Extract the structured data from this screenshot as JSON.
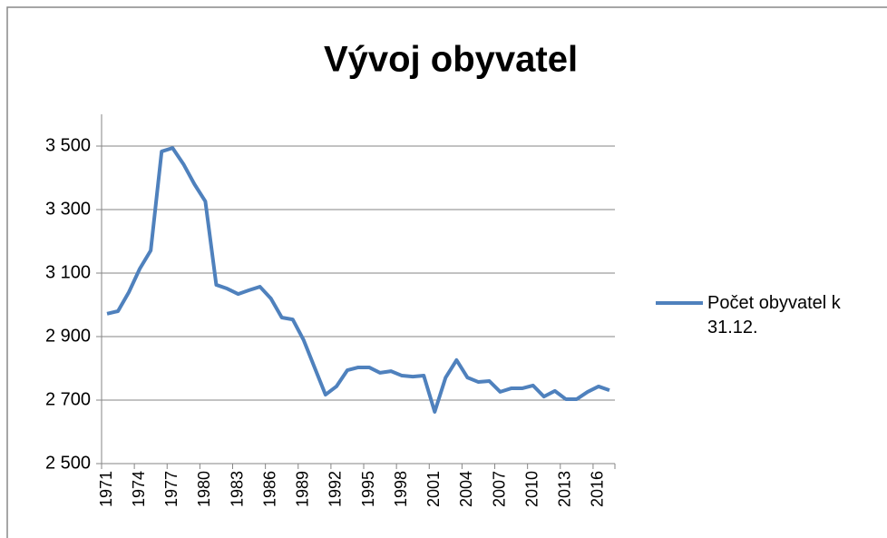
{
  "chart_data": {
    "type": "line",
    "title": "Vývoj obyvatel",
    "categories": [
      "1971",
      null,
      null,
      "1974",
      null,
      null,
      "1977",
      null,
      null,
      "1980",
      null,
      null,
      "1983",
      null,
      null,
      "1986",
      null,
      null,
      "1989",
      null,
      null,
      "1992",
      null,
      null,
      "1995",
      null,
      null,
      "1998",
      null,
      null,
      "2001",
      null,
      null,
      "2004",
      null,
      null,
      "2007",
      null,
      null,
      "2010",
      null,
      null,
      "2013",
      null,
      null,
      "2016",
      null
    ],
    "series": [
      {
        "name": "Počet obyvatel k 31.12.",
        "color": "#4f81bd",
        "values": [
          2972,
          2980,
          3040,
          3114,
          3171,
          3483,
          3494,
          3443,
          3380,
          3326,
          3063,
          3051,
          3034,
          3046,
          3057,
          3020,
          2960,
          2954,
          2889,
          2803,
          2717,
          2743,
          2794,
          2803,
          2803,
          2786,
          2791,
          2777,
          2774,
          2777,
          2663,
          2771,
          2826,
          2771,
          2757,
          2760,
          2726,
          2737,
          2737,
          2746,
          2711,
          2729,
          2703,
          2703,
          2726,
          2743,
          2731
        ]
      }
    ],
    "ylim": [
      2500,
      3600
    ],
    "yticks": [
      {
        "value": 2500,
        "label": "2 500"
      },
      {
        "value": 2700,
        "label": "2 700"
      },
      {
        "value": 2900,
        "label": "2 900"
      },
      {
        "value": 3100,
        "label": "3 100"
      },
      {
        "value": 3300,
        "label": "3 300"
      },
      {
        "value": 3500,
        "label": "3 500"
      }
    ],
    "grid": true,
    "legend": "right"
  }
}
